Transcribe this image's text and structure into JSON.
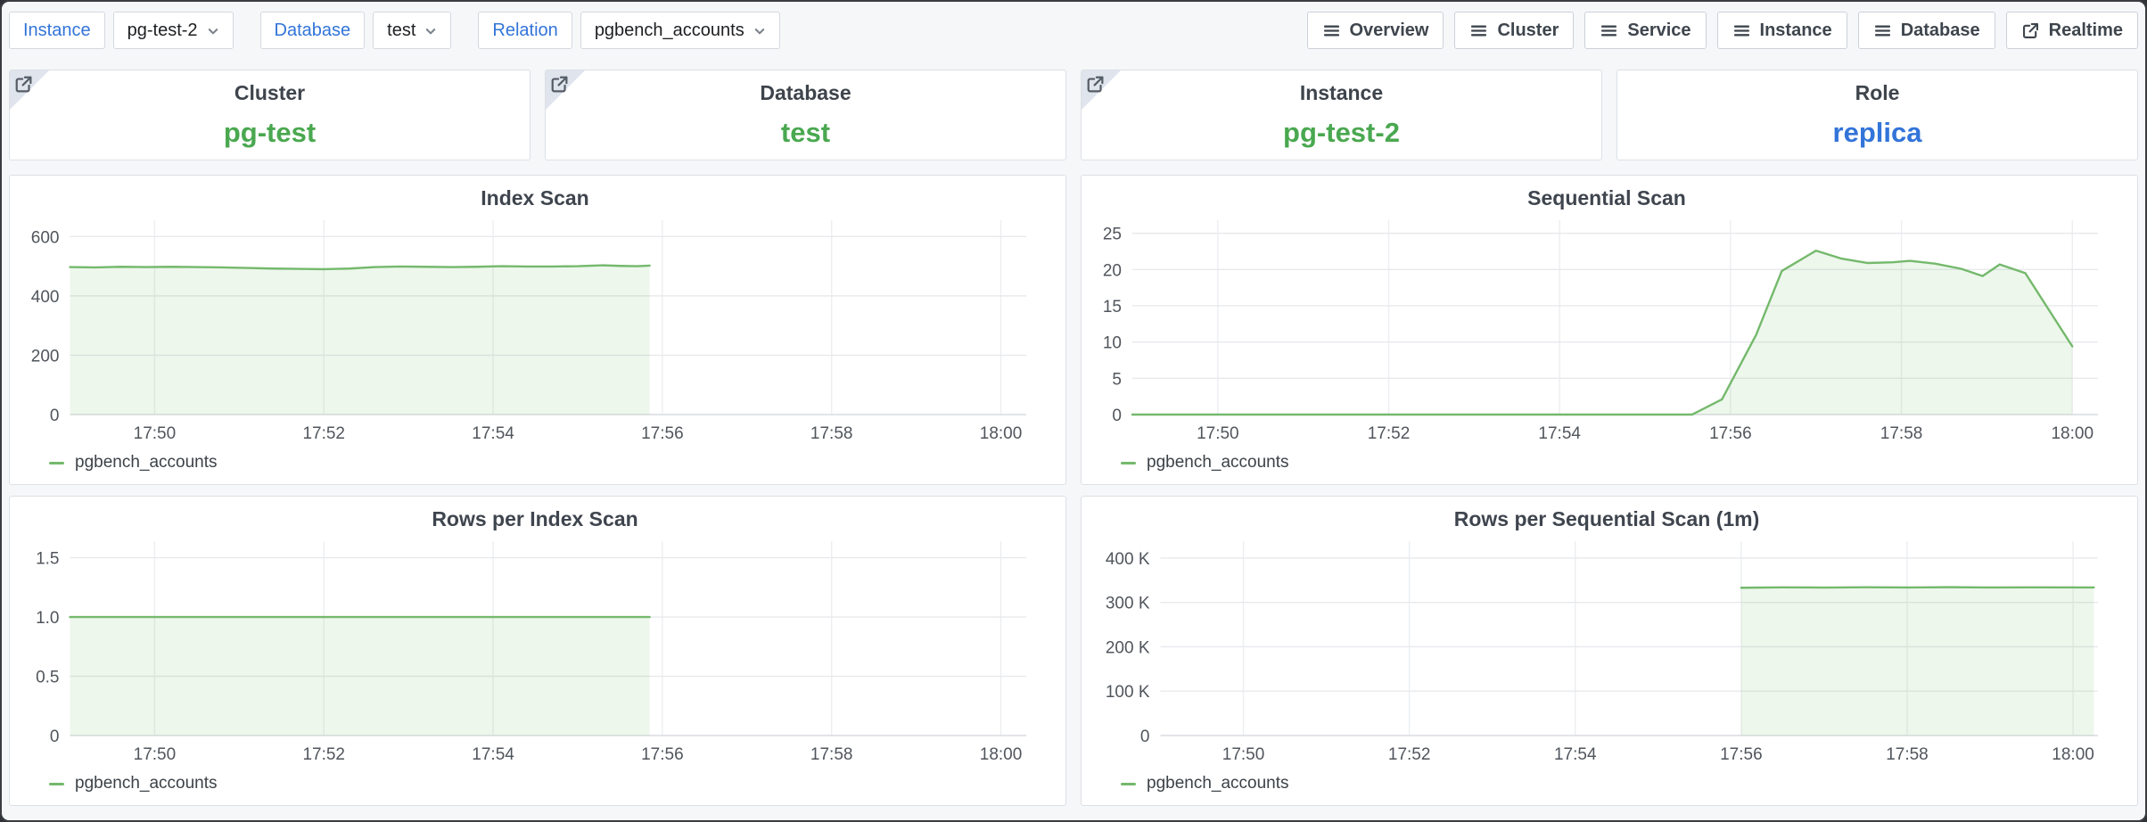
{
  "colors": {
    "accent_blue": "#3274d9",
    "stat_green": "#4aa850",
    "line_green": "#74b96c",
    "area_green": "rgba(115,191,105,0.13)",
    "page_bg": "#f6f7f9"
  },
  "filter_bar": {
    "filters": [
      {
        "label": "Instance",
        "value": "pg-test-2"
      },
      {
        "label": "Database",
        "value": "test"
      },
      {
        "label": "Relation",
        "value": "pgbench_accounts"
      }
    ],
    "nav_buttons": [
      {
        "label": "Overview",
        "icon": "menu-icon"
      },
      {
        "label": "Cluster",
        "icon": "menu-icon"
      },
      {
        "label": "Service",
        "icon": "menu-icon"
      },
      {
        "label": "Instance",
        "icon": "menu-icon"
      },
      {
        "label": "Database",
        "icon": "menu-icon"
      },
      {
        "label": "Realtime",
        "icon": "external-link-icon"
      }
    ]
  },
  "stats": [
    {
      "title": "Cluster",
      "value": "pg-test",
      "value_color": "#4aa850",
      "has_link": true
    },
    {
      "title": "Database",
      "value": "test",
      "value_color": "#4aa850",
      "has_link": true
    },
    {
      "title": "Instance",
      "value": "pg-test-2",
      "value_color": "#4aa850",
      "has_link": true
    },
    {
      "title": "Role",
      "value": "replica",
      "value_color": "#3274d9",
      "has_link": false
    }
  ],
  "chart_data": [
    {
      "type": "area",
      "title": "Index Scan",
      "legend_label": "pgbench_accounts",
      "line_color": "#74b96c",
      "fill_color": "rgba(115,191,105,0.13)",
      "x_unit": "minutes_after_17:49",
      "x_max": 11.3,
      "x_ticks": [
        {
          "t": 1,
          "label": "17:50"
        },
        {
          "t": 3,
          "label": "17:52"
        },
        {
          "t": 5,
          "label": "17:54"
        },
        {
          "t": 7,
          "label": "17:56"
        },
        {
          "t": 9,
          "label": "17:58"
        },
        {
          "t": 11,
          "label": "18:00"
        }
      ],
      "y_max": 655,
      "y_ticks": [
        {
          "v": 0,
          "label": "0"
        },
        {
          "v": 200,
          "label": "200"
        },
        {
          "v": 400,
          "label": "400"
        },
        {
          "v": 600,
          "label": "600"
        }
      ],
      "points": [
        [
          0,
          497
        ],
        [
          0.3,
          496
        ],
        [
          0.6,
          498
        ],
        [
          0.9,
          497
        ],
        [
          1.2,
          498
        ],
        [
          1.5,
          497
        ],
        [
          1.8,
          496
        ],
        [
          2.1,
          494
        ],
        [
          2.4,
          492
        ],
        [
          2.7,
          491
        ],
        [
          3.0,
          490
        ],
        [
          3.3,
          492
        ],
        [
          3.6,
          497
        ],
        [
          3.9,
          499
        ],
        [
          4.2,
          498
        ],
        [
          4.5,
          497
        ],
        [
          4.8,
          498
        ],
        [
          5.1,
          500
        ],
        [
          5.4,
          499
        ],
        [
          5.7,
          499
        ],
        [
          6.0,
          500
        ],
        [
          6.3,
          503
        ],
        [
          6.5,
          501
        ],
        [
          6.7,
          500
        ],
        [
          6.85,
          502
        ]
      ]
    },
    {
      "type": "area",
      "title": "Sequential Scan",
      "legend_label": "pgbench_accounts",
      "line_color": "#74b96c",
      "fill_color": "rgba(115,191,105,0.13)",
      "x_unit": "minutes_after_17:49",
      "x_max": 11.3,
      "x_ticks": [
        {
          "t": 1,
          "label": "17:50"
        },
        {
          "t": 3,
          "label": "17:52"
        },
        {
          "t": 5,
          "label": "17:54"
        },
        {
          "t": 7,
          "label": "17:56"
        },
        {
          "t": 9,
          "label": "17:58"
        },
        {
          "t": 11,
          "label": "18:00"
        }
      ],
      "y_max": 26.8,
      "y_ticks": [
        {
          "v": 0,
          "label": "0"
        },
        {
          "v": 5,
          "label": "5"
        },
        {
          "v": 10,
          "label": "10"
        },
        {
          "v": 15,
          "label": "15"
        },
        {
          "v": 20,
          "label": "20"
        },
        {
          "v": 25,
          "label": "25"
        }
      ],
      "points": [
        [
          0,
          0
        ],
        [
          6.55,
          0
        ],
        [
          6.9,
          2.1
        ],
        [
          7.3,
          11
        ],
        [
          7.6,
          19.8
        ],
        [
          8.0,
          22.6
        ],
        [
          8.3,
          21.5
        ],
        [
          8.6,
          20.9
        ],
        [
          8.9,
          21.0
        ],
        [
          9.1,
          21.2
        ],
        [
          9.4,
          20.8
        ],
        [
          9.7,
          20.1
        ],
        [
          9.95,
          19.1
        ],
        [
          10.15,
          20.7
        ],
        [
          10.45,
          19.5
        ],
        [
          11.0,
          9.4
        ]
      ]
    },
    {
      "type": "area",
      "title": "Rows per Index Scan",
      "legend_label": "pgbench_accounts",
      "line_color": "#74b96c",
      "fill_color": "rgba(115,191,105,0.13)",
      "x_unit": "minutes_after_17:49",
      "x_max": 11.3,
      "x_ticks": [
        {
          "t": 1,
          "label": "17:50"
        },
        {
          "t": 3,
          "label": "17:52"
        },
        {
          "t": 5,
          "label": "17:54"
        },
        {
          "t": 7,
          "label": "17:56"
        },
        {
          "t": 9,
          "label": "17:58"
        },
        {
          "t": 11,
          "label": "18:00"
        }
      ],
      "y_max": 1.64,
      "y_ticks": [
        {
          "v": 0,
          "label": "0"
        },
        {
          "v": 0.5,
          "label": "0.5"
        },
        {
          "v": 1.0,
          "label": "1.0"
        },
        {
          "v": 1.5,
          "label": "1.5"
        }
      ],
      "points": [
        [
          0,
          1.0
        ],
        [
          6.85,
          1.0
        ]
      ]
    },
    {
      "type": "area",
      "title": "Rows per Sequential Scan (1m)",
      "legend_label": "pgbench_accounts",
      "line_color": "#74b96c",
      "fill_color": "rgba(115,191,105,0.13)",
      "x_unit": "minutes_after_17:49",
      "x_max": 11.3,
      "x_ticks": [
        {
          "t": 1,
          "label": "17:50"
        },
        {
          "t": 3,
          "label": "17:52"
        },
        {
          "t": 5,
          "label": "17:54"
        },
        {
          "t": 7,
          "label": "17:56"
        },
        {
          "t": 9,
          "label": "17:58"
        },
        {
          "t": 11,
          "label": "18:00"
        }
      ],
      "y_max": 438000,
      "y_ticks": [
        {
          "v": 0,
          "label": "0"
        },
        {
          "v": 100000,
          "label": "100 K"
        },
        {
          "v": 200000,
          "label": "200 K"
        },
        {
          "v": 300000,
          "label": "300 K"
        },
        {
          "v": 400000,
          "label": "400 K"
        }
      ],
      "points": [
        [
          7.0,
          333000
        ],
        [
          7.5,
          334000
        ],
        [
          8.0,
          333400
        ],
        [
          8.5,
          334100
        ],
        [
          9.0,
          333700
        ],
        [
          9.5,
          334300
        ],
        [
          10.0,
          333600
        ],
        [
          10.5,
          334000
        ],
        [
          11.25,
          333600
        ]
      ]
    }
  ]
}
